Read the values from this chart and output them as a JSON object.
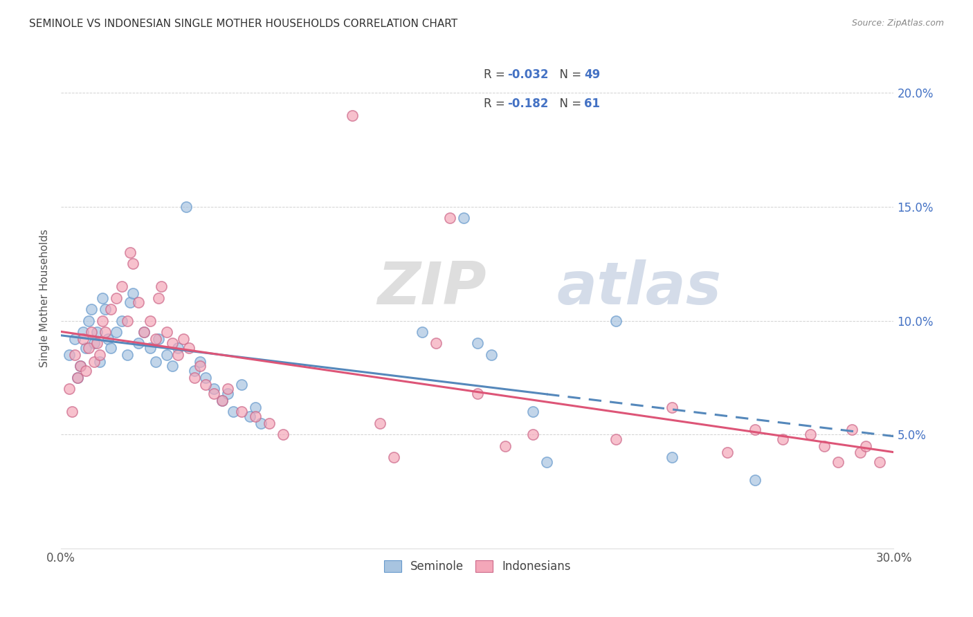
{
  "title": "SEMINOLE VS INDONESIAN SINGLE MOTHER HOUSEHOLDS CORRELATION CHART",
  "source": "Source: ZipAtlas.com",
  "ylabel": "Single Mother Households",
  "xlim": [
    0.0,
    0.3
  ],
  "ylim": [
    0.0,
    0.22
  ],
  "seminole_color": "#a8c4e0",
  "seminole_edge_color": "#6699cc",
  "indonesian_color": "#f4a7b9",
  "indonesian_edge_color": "#cc6688",
  "seminole_line_color": "#5588bb",
  "indonesian_line_color": "#dd5577",
  "watermark_text": "ZIPatlas",
  "background_color": "#ffffff",
  "grid_color": "#cccccc",
  "legend_R_sem": "-0.032",
  "legend_N_sem": "49",
  "legend_R_ind": "-0.182",
  "legend_N_ind": "61",
  "seminole_scatter": [
    [
      0.003,
      0.085
    ],
    [
      0.005,
      0.092
    ],
    [
      0.006,
      0.075
    ],
    [
      0.007,
      0.08
    ],
    [
      0.008,
      0.095
    ],
    [
      0.009,
      0.088
    ],
    [
      0.01,
      0.1
    ],
    [
      0.011,
      0.105
    ],
    [
      0.012,
      0.09
    ],
    [
      0.013,
      0.095
    ],
    [
      0.014,
      0.082
    ],
    [
      0.015,
      0.11
    ],
    [
      0.016,
      0.105
    ],
    [
      0.017,
      0.092
    ],
    [
      0.018,
      0.088
    ],
    [
      0.02,
      0.095
    ],
    [
      0.022,
      0.1
    ],
    [
      0.024,
      0.085
    ],
    [
      0.025,
      0.108
    ],
    [
      0.026,
      0.112
    ],
    [
      0.028,
      0.09
    ],
    [
      0.03,
      0.095
    ],
    [
      0.032,
      0.088
    ],
    [
      0.034,
      0.082
    ],
    [
      0.035,
      0.092
    ],
    [
      0.038,
      0.085
    ],
    [
      0.04,
      0.08
    ],
    [
      0.042,
      0.088
    ],
    [
      0.045,
      0.15
    ],
    [
      0.048,
      0.078
    ],
    [
      0.05,
      0.082
    ],
    [
      0.052,
      0.075
    ],
    [
      0.055,
      0.07
    ],
    [
      0.058,
      0.065
    ],
    [
      0.06,
      0.068
    ],
    [
      0.062,
      0.06
    ],
    [
      0.065,
      0.072
    ],
    [
      0.068,
      0.058
    ],
    [
      0.07,
      0.062
    ],
    [
      0.072,
      0.055
    ],
    [
      0.13,
      0.095
    ],
    [
      0.145,
      0.145
    ],
    [
      0.15,
      0.09
    ],
    [
      0.155,
      0.085
    ],
    [
      0.17,
      0.06
    ],
    [
      0.175,
      0.038
    ],
    [
      0.2,
      0.1
    ],
    [
      0.22,
      0.04
    ],
    [
      0.25,
      0.03
    ]
  ],
  "indonesian_scatter": [
    [
      0.003,
      0.07
    ],
    [
      0.004,
      0.06
    ],
    [
      0.005,
      0.085
    ],
    [
      0.006,
      0.075
    ],
    [
      0.007,
      0.08
    ],
    [
      0.008,
      0.092
    ],
    [
      0.009,
      0.078
    ],
    [
      0.01,
      0.088
    ],
    [
      0.011,
      0.095
    ],
    [
      0.012,
      0.082
    ],
    [
      0.013,
      0.09
    ],
    [
      0.014,
      0.085
    ],
    [
      0.015,
      0.1
    ],
    [
      0.016,
      0.095
    ],
    [
      0.018,
      0.105
    ],
    [
      0.02,
      0.11
    ],
    [
      0.022,
      0.115
    ],
    [
      0.024,
      0.1
    ],
    [
      0.025,
      0.13
    ],
    [
      0.026,
      0.125
    ],
    [
      0.028,
      0.108
    ],
    [
      0.03,
      0.095
    ],
    [
      0.032,
      0.1
    ],
    [
      0.034,
      0.092
    ],
    [
      0.035,
      0.11
    ],
    [
      0.036,
      0.115
    ],
    [
      0.038,
      0.095
    ],
    [
      0.04,
      0.09
    ],
    [
      0.042,
      0.085
    ],
    [
      0.044,
      0.092
    ],
    [
      0.046,
      0.088
    ],
    [
      0.048,
      0.075
    ],
    [
      0.05,
      0.08
    ],
    [
      0.052,
      0.072
    ],
    [
      0.055,
      0.068
    ],
    [
      0.058,
      0.065
    ],
    [
      0.06,
      0.07
    ],
    [
      0.065,
      0.06
    ],
    [
      0.07,
      0.058
    ],
    [
      0.075,
      0.055
    ],
    [
      0.08,
      0.05
    ],
    [
      0.105,
      0.19
    ],
    [
      0.115,
      0.055
    ],
    [
      0.12,
      0.04
    ],
    [
      0.135,
      0.09
    ],
    [
      0.14,
      0.145
    ],
    [
      0.15,
      0.068
    ],
    [
      0.16,
      0.045
    ],
    [
      0.17,
      0.05
    ],
    [
      0.2,
      0.048
    ],
    [
      0.22,
      0.062
    ],
    [
      0.24,
      0.042
    ],
    [
      0.25,
      0.052
    ],
    [
      0.26,
      0.048
    ],
    [
      0.27,
      0.05
    ],
    [
      0.275,
      0.045
    ],
    [
      0.28,
      0.038
    ],
    [
      0.285,
      0.052
    ],
    [
      0.288,
      0.042
    ],
    [
      0.29,
      0.045
    ],
    [
      0.295,
      0.038
    ]
  ]
}
